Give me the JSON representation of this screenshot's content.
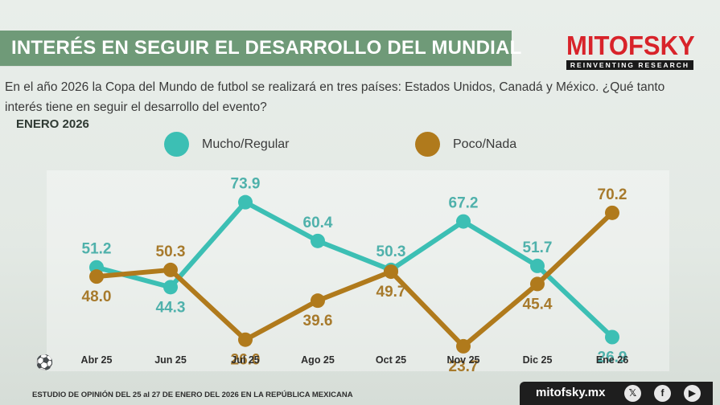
{
  "header": {
    "title": "INTERÉS EN SEGUIR EL DESARROLLO DEL MUNDIAL",
    "logo_main": "MITOFSKY",
    "logo_sub": "REINVENTING RESEARCH"
  },
  "question": "En el año 2026 la Copa del Mundo de futbol se realizará en tres países: Estados Unidos, Canadá y México. ¿Qué tanto interés tiene en seguir el desarrollo del evento?",
  "period": "ENERO 2026",
  "legend": [
    {
      "label": "Mucho/Regular",
      "color": "#3cbfb4"
    },
    {
      "label": "Poco/Nada",
      "color": "#b07a1c"
    }
  ],
  "chart_data": {
    "type": "line",
    "title": "INTERÉS EN SEGUIR EL DESARROLLO DEL MUNDIAL",
    "categories": [
      "Abr 25",
      "Jun 25",
      "Jul 25",
      "Ago 25",
      "Oct 25",
      "Nov 25",
      "Dic 25",
      "Ene 26"
    ],
    "series": [
      {
        "name": "Mucho/Regular",
        "color": "#3cbfb4",
        "label_color": "#4fb1ab",
        "values": [
          51.2,
          44.3,
          73.9,
          60.4,
          50.3,
          67.2,
          51.7,
          26.9
        ]
      },
      {
        "name": "Poco/Nada",
        "color": "#b07a1c",
        "label_color": "#a77a2c",
        "values": [
          48.0,
          50.3,
          26.0,
          39.6,
          49.7,
          23.7,
          45.4,
          70.2
        ]
      }
    ],
    "ylim": [
      15,
      85
    ],
    "xlabel": "",
    "ylabel": "",
    "grid": false,
    "legend_position": "top"
  },
  "footer": {
    "note": "ESTUDIO DE OPINIÓN DEL 25 al 27 DE ENERO DEL 2026 EN LA REPÚBLICA MEXICANA",
    "site": "mitofsky.mx",
    "social": [
      {
        "icon": "x-icon",
        "glyph": "𝕏"
      },
      {
        "icon": "facebook-icon",
        "glyph": "f"
      },
      {
        "icon": "youtube-icon",
        "glyph": "▶"
      }
    ]
  }
}
